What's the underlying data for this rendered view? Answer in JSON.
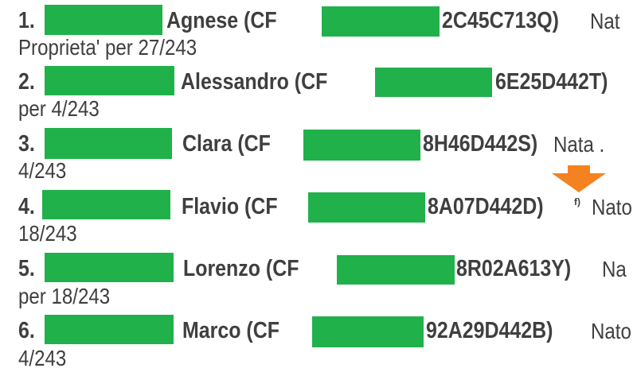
{
  "colors": {
    "redaction": "#21b14b",
    "text": "#3f3f3f",
    "arrow": "#f58220"
  },
  "rows": [
    {
      "num": "1.",
      "name": "Agnese  (CF",
      "cf_suffix": "2C45C713Q)",
      "trail": "Nat",
      "share": "Proprieta'   per 27/243"
    },
    {
      "num": "2.",
      "name": "Alessandro  (CF",
      "cf_suffix": "6E25D442T)",
      "trail": "",
      "share": "per 4/243"
    },
    {
      "num": "3.",
      "name": "Clara  (CF",
      "cf_suffix": "8H46D442S)",
      "trail": "Nata .",
      "share": "4/243"
    },
    {
      "num": "4.",
      "name": "Flavio  (CF",
      "cf_suffix": "8A07D442D)",
      "sup": "f)",
      "trail": "Nato",
      "share": "18/243"
    },
    {
      "num": "5.",
      "name": "Lorenzo  (CF",
      "cf_suffix": "8R02A613Y)",
      "trail": "Na",
      "share": "per 18/243"
    },
    {
      "num": "6.",
      "name": "Marco  (CF",
      "cf_suffix": "92A29D442B)",
      "trail": "Nato",
      "share": "4/243"
    }
  ],
  "arrow_icon": "arrow-down-icon"
}
